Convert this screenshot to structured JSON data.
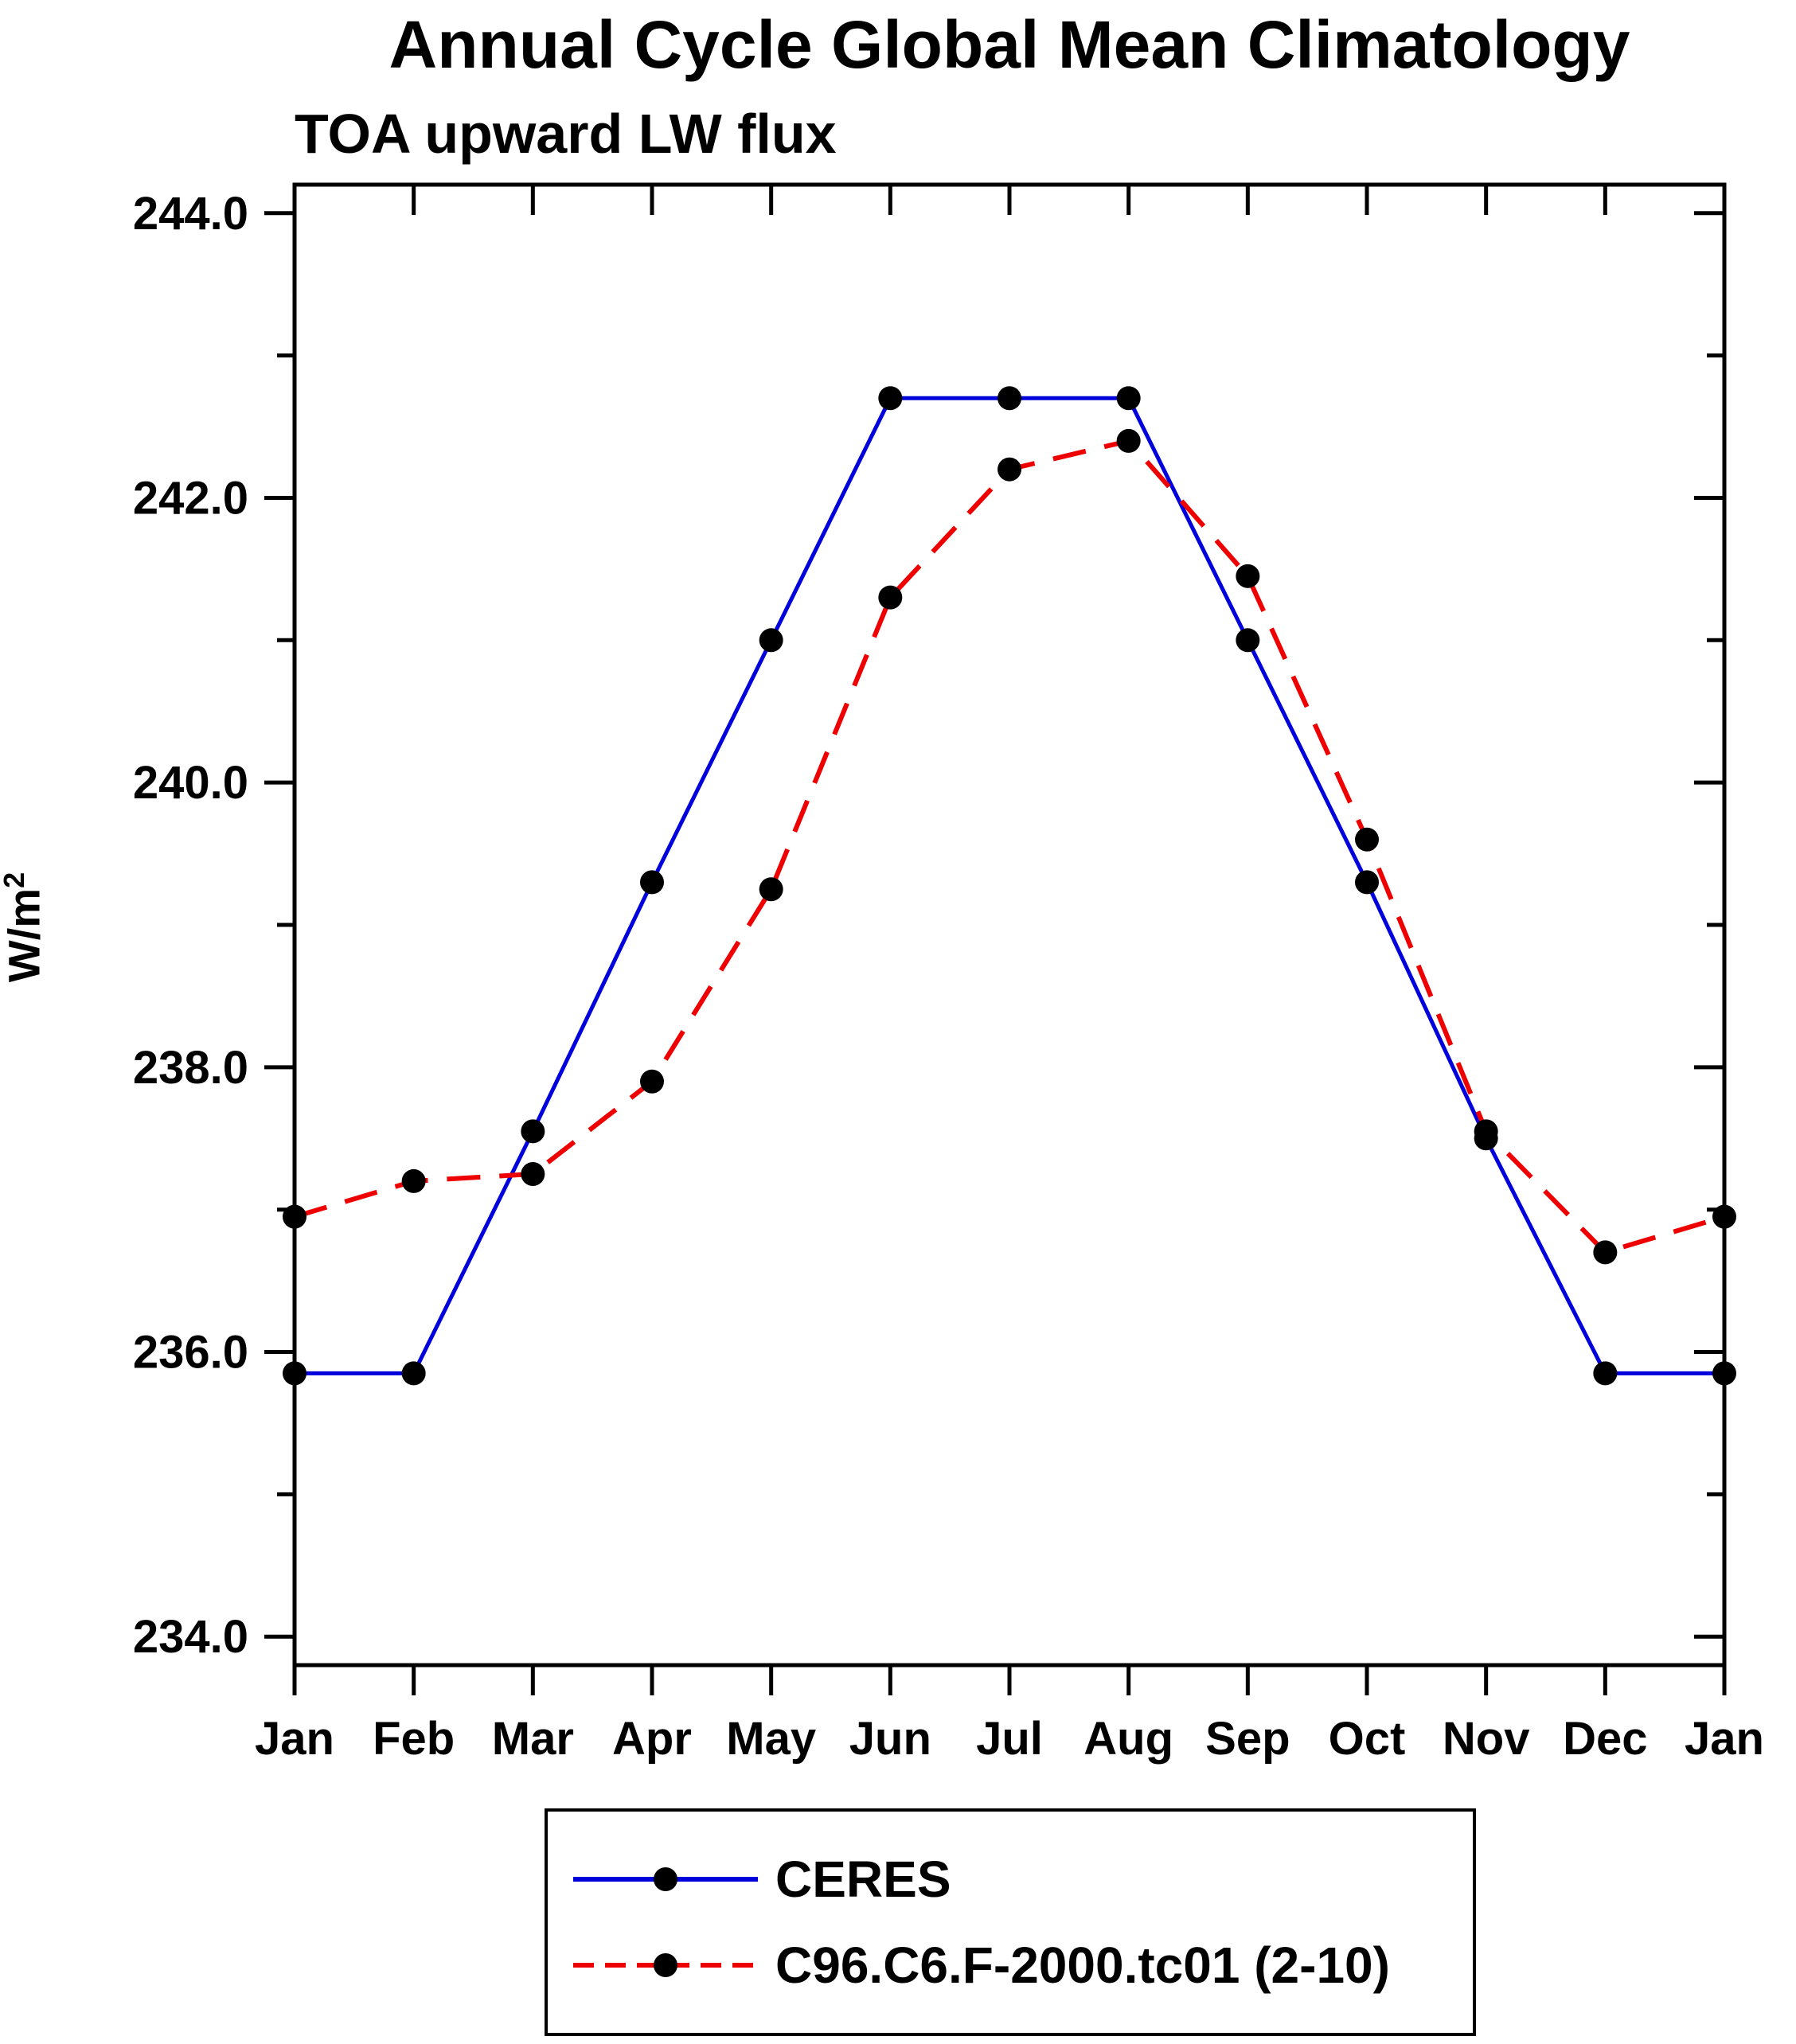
{
  "chart_data": {
    "type": "line",
    "title": "Annual Cycle Global Mean Climatology",
    "subtitle": "TOA upward LW flux",
    "ylabel": "W/m^2",
    "ylabel_base": "W/m",
    "ylabel_exp": "2",
    "categories": [
      "Jan",
      "Feb",
      "Mar",
      "Apr",
      "May",
      "Jun",
      "Jul",
      "Aug",
      "Sep",
      "Oct",
      "Nov",
      "Dec",
      "Jan"
    ],
    "ylim": [
      233.8,
      244.2
    ],
    "yticks_major": [
      234.0,
      236.0,
      238.0,
      240.0,
      242.0,
      244.0
    ],
    "yticks_minor": [
      235.0,
      237.0,
      239.0,
      241.0,
      243.0
    ],
    "ytick_decimals": 1,
    "marker_color": "#000000",
    "frame_color": "#000000",
    "legend_position": "bottom",
    "series": [
      {
        "name": "CERES",
        "color": "#0000dd",
        "style": "solid",
        "values": [
          235.85,
          235.85,
          237.55,
          239.3,
          241.0,
          242.7,
          242.7,
          242.7,
          241.0,
          239.3,
          237.5,
          235.85,
          235.85
        ]
      },
      {
        "name": "C96.C6.F-2000.tc01 (2-10)",
        "color": "#ee0000",
        "style": "dashed",
        "values": [
          236.95,
          237.2,
          237.25,
          237.9,
          239.25,
          241.3,
          242.2,
          242.4,
          241.45,
          239.6,
          237.55,
          236.7,
          236.95
        ]
      }
    ]
  }
}
